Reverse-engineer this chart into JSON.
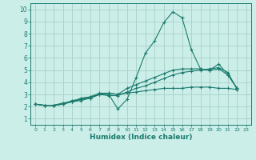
{
  "xlabel": "Humidex (Indice chaleur)",
  "bg_color": "#cceee8",
  "grid_color": "#aad4cc",
  "line_color": "#1a7a6e",
  "xlim": [
    -0.5,
    23.5
  ],
  "ylim": [
    0.5,
    10.5
  ],
  "xticks": [
    0,
    1,
    2,
    3,
    4,
    5,
    6,
    7,
    8,
    9,
    10,
    11,
    12,
    13,
    14,
    15,
    16,
    17,
    18,
    19,
    20,
    21,
    22,
    23
  ],
  "yticks": [
    1,
    2,
    3,
    4,
    5,
    6,
    7,
    8,
    9,
    10
  ],
  "lines": [
    [
      0,
      2.2,
      1,
      2.1,
      2,
      2.1,
      3,
      2.2,
      4,
      2.4,
      5,
      2.6,
      6,
      2.7,
      7,
      3.0,
      8,
      3.0,
      9,
      1.8,
      10,
      2.6,
      11,
      4.4,
      12,
      6.4,
      13,
      7.4,
      14,
      8.9,
      15,
      9.8,
      16,
      9.3,
      17,
      6.7,
      18,
      5.1,
      19,
      5.0,
      20,
      5.5,
      21,
      4.6,
      22,
      3.5
    ],
    [
      0,
      2.2,
      1,
      2.1,
      2,
      2.1,
      3,
      2.3,
      4,
      2.4,
      5,
      2.7,
      6,
      2.8,
      7,
      3.1,
      8,
      3.1,
      9,
      3.0,
      10,
      3.5,
      11,
      3.8,
      12,
      4.1,
      13,
      4.4,
      14,
      4.7,
      15,
      5.0,
      16,
      5.1,
      17,
      5.1,
      18,
      5.1,
      19,
      5.0,
      20,
      5.1,
      21,
      4.6,
      22,
      3.5
    ],
    [
      0,
      2.2,
      1,
      2.1,
      2,
      2.1,
      3,
      2.2,
      4,
      2.4,
      5,
      2.5,
      6,
      2.7,
      7,
      3.0,
      8,
      2.9,
      9,
      2.9,
      10,
      3.2,
      11,
      3.5,
      12,
      3.7,
      13,
      4.0,
      14,
      4.3,
      15,
      4.6,
      16,
      4.8,
      17,
      4.9,
      18,
      5.0,
      19,
      5.1,
      20,
      5.2,
      21,
      4.8,
      22,
      3.4
    ],
    [
      0,
      2.2,
      1,
      2.1,
      2,
      2.1,
      3,
      2.2,
      4,
      2.5,
      5,
      2.6,
      6,
      2.8,
      7,
      3.0,
      8,
      3.1,
      9,
      3.0,
      10,
      3.1,
      11,
      3.2,
      12,
      3.3,
      13,
      3.4,
      14,
      3.5,
      15,
      3.5,
      16,
      3.5,
      17,
      3.6,
      18,
      3.6,
      19,
      3.6,
      20,
      3.5,
      21,
      3.5,
      22,
      3.4
    ]
  ]
}
